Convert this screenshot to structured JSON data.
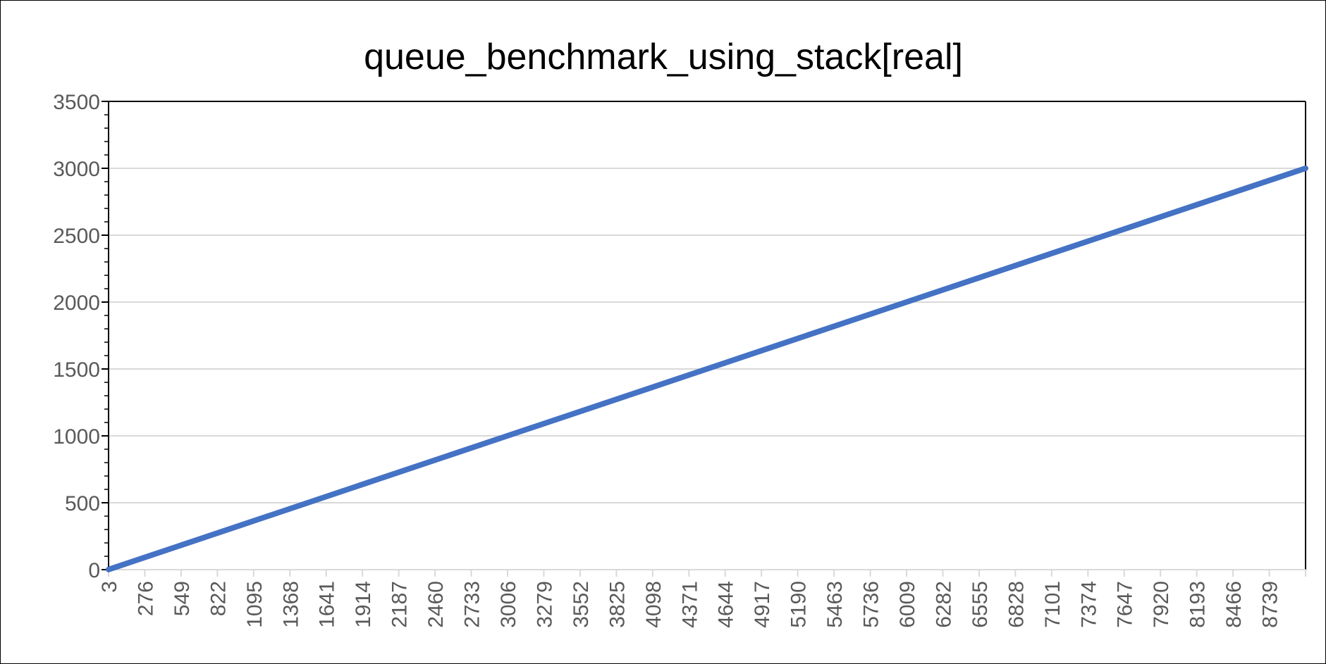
{
  "chart_data": {
    "type": "line",
    "title": "queue_benchmark_using_stack[real]",
    "xlabel": "",
    "ylabel": "",
    "x_tick_labels": [
      "3",
      "276",
      "549",
      "822",
      "1095",
      "1368",
      "1641",
      "1914",
      "2187",
      "2460",
      "2733",
      "3006",
      "3279",
      "3552",
      "3825",
      "4098",
      "4371",
      "4644",
      "4917",
      "5190",
      "5463",
      "5736",
      "6009",
      "6282",
      "6555",
      "6828",
      "7101",
      "7374",
      "7647",
      "7920",
      "8193",
      "8466",
      "8739"
    ],
    "y_tick_labels": [
      "0",
      "500",
      "1000",
      "1500",
      "2000",
      "2500",
      "3000",
      "3500"
    ],
    "xlim": [
      3,
      9000
    ],
    "ylim": [
      0,
      3500
    ],
    "grid": true,
    "legend": "none",
    "series": [
      {
        "color": "#4472C4",
        "x": [
          3,
          1000,
          2000,
          3000,
          4000,
          5000,
          6000,
          7000,
          8000,
          9000
        ],
        "y": [
          1,
          333,
          667,
          1000,
          1333,
          1667,
          2000,
          2333,
          2667,
          3000
        ]
      }
    ]
  }
}
